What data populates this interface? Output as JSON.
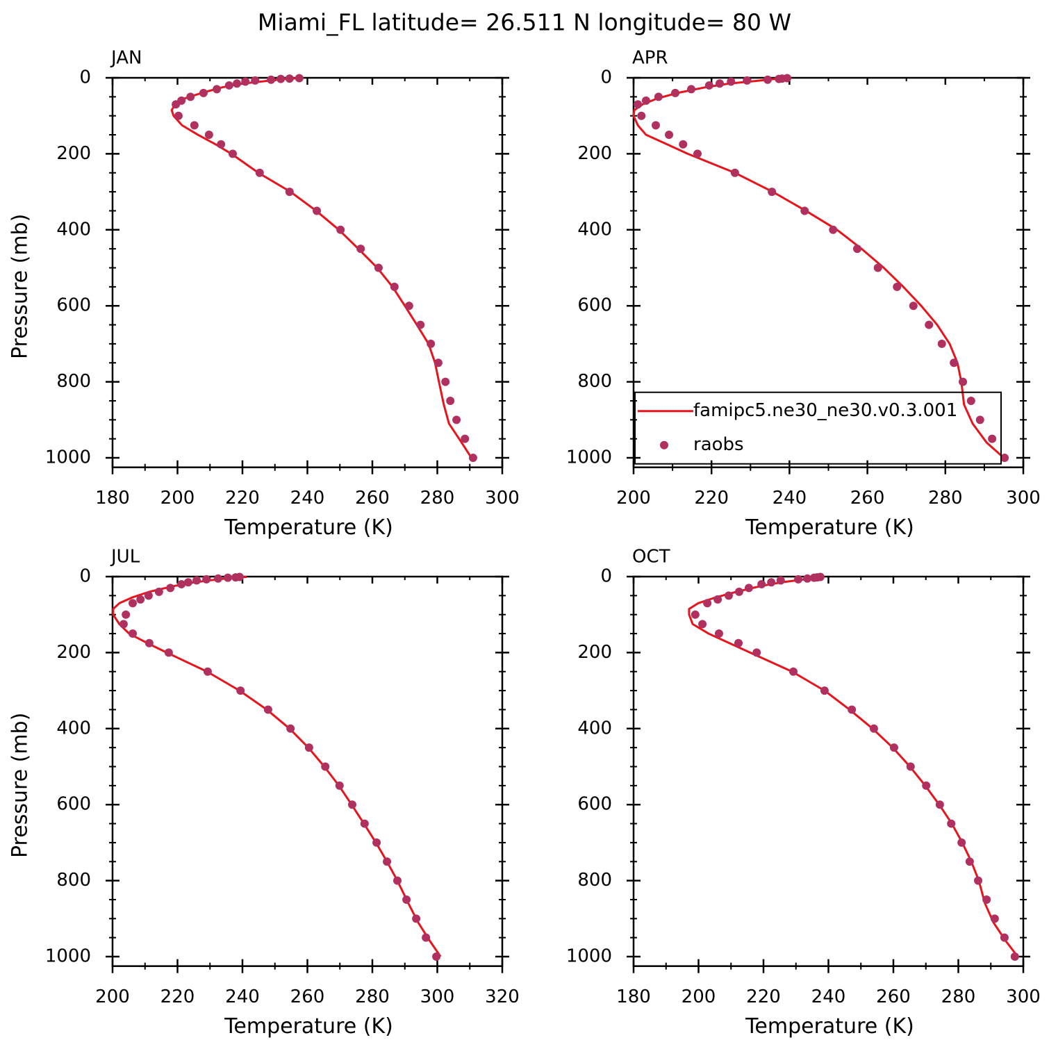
{
  "title": "Miami_FL  latitude= 26.511 N longitude= 80 W",
  "chart_data": [
    {
      "type": "line",
      "title": "JAN",
      "xlabel": "Temperature (K)",
      "ylabel": "Pressure (mb)",
      "xlim": [
        180,
        300
      ],
      "xticks": [
        180,
        200,
        220,
        240,
        260,
        280,
        300
      ],
      "xminorticks": [
        190,
        210,
        230,
        250,
        270,
        290
      ],
      "ylim": [
        1025,
        0
      ],
      "yticks": [
        0,
        200,
        400,
        600,
        800,
        1000
      ],
      "yminorticks": [
        50,
        100,
        150,
        250,
        300,
        350,
        450,
        500,
        550,
        650,
        700,
        750,
        850,
        900,
        950
      ],
      "series": [
        {
          "color": "#e8141c",
          "marker": "line",
          "x": [
            290.5,
            287.5,
            283.6,
            282.0,
            280.5,
            279.3,
            277.3,
            273.7,
            270.0,
            266.2,
            261.5,
            255.7,
            249.7,
            242.7,
            234.8,
            224.9,
            216.6,
            211.7,
            206.3,
            201.4,
            198.8,
            198.2,
            199.3,
            202.0,
            207.4,
            213.8,
            220.2,
            227.7,
            233.0,
            237.3
          ],
          "y": [
            1000,
            960,
            910,
            860,
            800,
            750,
            700,
            650,
            600,
            550,
            500,
            450,
            400,
            350,
            300,
            250,
            200,
            175,
            150,
            125,
            100,
            85,
            70,
            55,
            40,
            25,
            15,
            8,
            3,
            1
          ]
        },
        {
          "color": "#b03060",
          "marker": "dot",
          "x": [
            291.0,
            288.5,
            285.9,
            284.0,
            282.5,
            280.3,
            278.0,
            274.8,
            271.3,
            266.8,
            261.9,
            256.4,
            250.2,
            242.9,
            234.5,
            225.3,
            217.0,
            213.4,
            209.7,
            205.2,
            200.3,
            199.5,
            201.2,
            204.0,
            208.0,
            212.1,
            215.9,
            218.3,
            220.9,
            223.9,
            228.8,
            231.8,
            234.5,
            237.5
          ],
          "y": [
            1000,
            950,
            900,
            850,
            800,
            750,
            700,
            650,
            600,
            550,
            500,
            450,
            400,
            350,
            300,
            250,
            200,
            175,
            150,
            125,
            100,
            70,
            60,
            50,
            40,
            30,
            20,
            15,
            10,
            7,
            5,
            3,
            2,
            1
          ]
        }
      ]
    },
    {
      "type": "line",
      "title": "APR",
      "xlabel": "Temperature (K)",
      "legend": "lower right",
      "xlim": [
        200,
        300
      ],
      "xticks": [
        200,
        220,
        240,
        260,
        280,
        300
      ],
      "xminorticks": [
        210,
        230,
        250,
        270,
        290
      ],
      "ylim": [
        1025,
        0
      ],
      "yticks": [
        0,
        200,
        400,
        600,
        800,
        1000
      ],
      "yminorticks": [
        50,
        100,
        150,
        250,
        300,
        350,
        450,
        500,
        550,
        650,
        700,
        750,
        850,
        900,
        950
      ],
      "series": [
        {
          "name": "famipc5.ne30_ne30.v0.3.001",
          "color": "#e8141c",
          "marker": "line",
          "x": [
            295.0,
            290.6,
            287.0,
            284.8,
            284.1,
            283.1,
            281.1,
            277.9,
            273.8,
            269.2,
            264.2,
            258.5,
            252.2,
            244.2,
            235.7,
            226.0,
            213.9,
            208.6,
            203.2,
            201.1,
            200.0,
            200.2,
            202.3,
            205.9,
            211.2,
            218.4,
            224.6,
            231.7,
            236.2,
            240.3
          ],
          "y": [
            1000,
            960,
            910,
            860,
            800,
            750,
            700,
            650,
            600,
            550,
            500,
            450,
            400,
            350,
            300,
            250,
            200,
            175,
            150,
            125,
            100,
            85,
            70,
            55,
            40,
            25,
            15,
            8,
            3,
            1
          ]
        },
        {
          "name": "raobs",
          "color": "#b03060",
          "marker": "dot",
          "x": [
            295.2,
            292.0,
            288.9,
            286.6,
            284.5,
            282.2,
            279.1,
            275.8,
            271.8,
            267.6,
            262.7,
            257.4,
            251.2,
            243.9,
            235.5,
            226.0,
            216.4,
            212.7,
            209.1,
            205.7,
            202.0,
            201.1,
            203.2,
            206.4,
            210.7,
            214.8,
            219.4,
            222.1,
            225.0,
            229.1,
            234.4,
            237.3,
            238.1,
            239.4
          ],
          "y": [
            1000,
            950,
            900,
            850,
            800,
            750,
            700,
            650,
            600,
            550,
            500,
            450,
            400,
            350,
            300,
            250,
            200,
            175,
            150,
            125,
            100,
            70,
            60,
            50,
            40,
            30,
            20,
            15,
            10,
            7,
            5,
            3,
            2,
            1
          ]
        }
      ]
    },
    {
      "type": "line",
      "title": "JUL",
      "xlabel": "Temperature (K)",
      "ylabel": "Pressure (mb)",
      "xlim": [
        200,
        320
      ],
      "xticks": [
        200,
        220,
        240,
        260,
        280,
        300,
        320
      ],
      "xminorticks": [
        210,
        230,
        250,
        270,
        290,
        310
      ],
      "ylim": [
        1025,
        0
      ],
      "yticks": [
        0,
        200,
        400,
        600,
        800,
        1000
      ],
      "yminorticks": [
        50,
        100,
        150,
        250,
        300,
        350,
        450,
        500,
        550,
        650,
        700,
        750,
        850,
        900,
        950
      ],
      "series": [
        {
          "color": "#e8141c",
          "marker": "line",
          "x": [
            301.0,
            297.8,
            294.1,
            291.1,
            287.7,
            284.5,
            281.1,
            277.4,
            273.6,
            269.7,
            265.2,
            260.3,
            254.5,
            247.5,
            239.1,
            229.1,
            216.7,
            210.7,
            205.1,
            202.1,
            200.2,
            200.2,
            202.1,
            206.0,
            211.3,
            218.8,
            225.2,
            231.7,
            237.0,
            241.3
          ],
          "y": [
            1000,
            960,
            910,
            860,
            800,
            750,
            700,
            650,
            600,
            550,
            500,
            450,
            400,
            350,
            300,
            250,
            200,
            175,
            150,
            125,
            100,
            85,
            70,
            55,
            40,
            25,
            15,
            8,
            3,
            1
          ]
        },
        {
          "color": "#b03060",
          "marker": "dot",
          "x": [
            299.7,
            296.5,
            293.5,
            290.5,
            287.7,
            284.5,
            281.3,
            277.6,
            273.8,
            269.9,
            265.5,
            260.5,
            254.8,
            247.9,
            239.4,
            229.3,
            217.3,
            211.3,
            206.2,
            203.4,
            204.1,
            206.2,
            208.6,
            211.1,
            214.3,
            217.8,
            221.2,
            223.3,
            225.9,
            228.9,
            232.5,
            235.5,
            237.9,
            239.1
          ],
          "y": [
            1000,
            950,
            900,
            850,
            800,
            750,
            700,
            650,
            600,
            550,
            500,
            450,
            400,
            350,
            300,
            250,
            200,
            175,
            150,
            125,
            100,
            70,
            60,
            50,
            40,
            30,
            20,
            15,
            10,
            7,
            5,
            3,
            2,
            1
          ]
        }
      ]
    },
    {
      "type": "line",
      "title": "OCT",
      "xlabel": "Temperature (K)",
      "xlim": [
        180,
        300
      ],
      "xticks": [
        180,
        200,
        220,
        240,
        260,
        280,
        300
      ],
      "xminorticks": [
        190,
        210,
        230,
        250,
        270,
        290
      ],
      "ylim": [
        1025,
        0
      ],
      "yticks": [
        0,
        200,
        400,
        600,
        800,
        1000
      ],
      "yminorticks": [
        50,
        100,
        150,
        250,
        300,
        350,
        450,
        500,
        550,
        650,
        700,
        750,
        850,
        900,
        950
      ],
      "series": [
        {
          "color": "#e8141c",
          "marker": "line",
          "x": [
            298.3,
            294.7,
            290.8,
            288.2,
            286.3,
            284.0,
            281.2,
            278.0,
            274.1,
            269.8,
            265.1,
            259.8,
            253.6,
            246.5,
            238.8,
            228.8,
            215.9,
            209.5,
            203.1,
            198.2,
            197.1,
            197.1,
            199.9,
            205.2,
            211.7,
            219.1,
            225.6,
            232.0,
            236.3,
            238.4
          ],
          "y": [
            1000,
            960,
            910,
            860,
            800,
            750,
            700,
            650,
            600,
            550,
            500,
            450,
            400,
            350,
            300,
            250,
            200,
            175,
            150,
            125,
            100,
            85,
            70,
            55,
            40,
            25,
            15,
            8,
            3,
            1
          ]
        },
        {
          "color": "#b03060",
          "marker": "dot",
          "x": [
            297.4,
            294.2,
            291.2,
            288.7,
            286.1,
            283.5,
            281.0,
            277.8,
            274.3,
            270.1,
            265.3,
            260.2,
            254.0,
            247.2,
            238.8,
            229.2,
            217.9,
            212.3,
            206.3,
            201.2,
            199.0,
            202.7,
            205.9,
            209.3,
            212.5,
            215.5,
            219.4,
            222.4,
            225.3,
            230.7,
            233.5,
            235.6,
            236.5,
            237.5
          ],
          "y": [
            1000,
            950,
            900,
            850,
            800,
            750,
            700,
            650,
            600,
            550,
            500,
            450,
            400,
            350,
            300,
            250,
            200,
            175,
            150,
            125,
            100,
            70,
            60,
            50,
            40,
            30,
            20,
            15,
            10,
            7,
            5,
            3,
            2,
            1
          ]
        }
      ]
    }
  ]
}
